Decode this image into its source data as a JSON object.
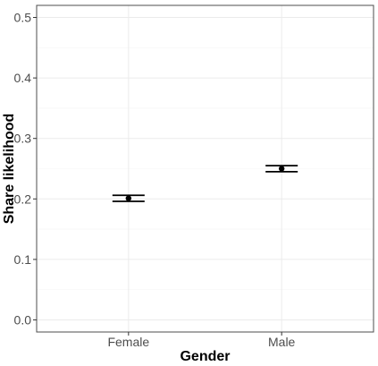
{
  "chart_data": {
    "type": "scatter",
    "title": "",
    "xlabel": "Gender",
    "ylabel": "Share likelihood",
    "categories": [
      "Female",
      "Male"
    ],
    "series": [
      {
        "values": [
          0.201,
          0.25
        ],
        "error_low": [
          0.196,
          0.245
        ],
        "error_high": [
          0.206,
          0.255
        ]
      }
    ],
    "ylim": [
      -0.02,
      0.52
    ],
    "yticks": [
      0.0,
      0.1,
      0.2,
      0.3,
      0.4,
      0.5
    ],
    "ytick_labels": [
      "0.0",
      "0.1",
      "0.2",
      "0.3",
      "0.4",
      "0.5"
    ],
    "grid": true,
    "legend": "none",
    "colors": {
      "point": "#000000",
      "errorbar": "#000000",
      "grid_major": "#ebebeb",
      "grid_minor": "#f5f5f5",
      "panel_border": "#4d4d4d"
    }
  }
}
